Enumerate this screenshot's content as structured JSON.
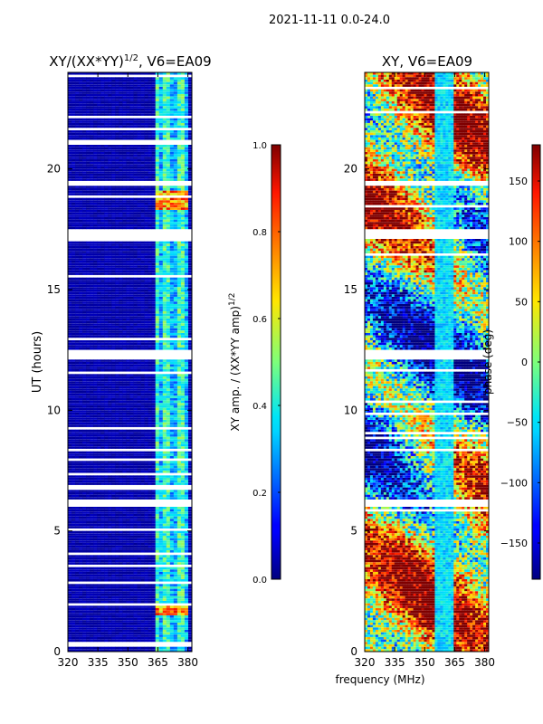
{
  "figure": {
    "suptitle": "2021-11-11 0.0-24.0",
    "shared_xlabel": "frequency (MHz)"
  },
  "chart_data": [
    {
      "type": "heatmap",
      "title": "XY/(XX*YY)^{1/2}, V6=EA09",
      "title_main": "XY/(XX*YY)",
      "title_sup": "1/2",
      "title_tail": ", V6=EA09",
      "xlabel": "",
      "ylabel": "UT (hours)",
      "xlim": [
        320,
        382
      ],
      "ylim": [
        0,
        24
      ],
      "xticks": [
        "320",
        "335",
        "350",
        "365",
        "380"
      ],
      "yticks": [
        "0",
        "5",
        "10",
        "15",
        "20"
      ],
      "colorbar": {
        "label": "XY amp. / (XX*YY amp)^{1/2}",
        "label_main": "XY amp. / (XX*YY amp)",
        "label_sup": "1/2",
        "range": [
          0.0,
          1.0
        ],
        "ticks": [
          "0.0",
          "0.2",
          "0.4",
          "0.6",
          "0.8",
          "1.0"
        ],
        "colormap": "jet"
      },
      "active_band_mhz": [
        363,
        380
      ],
      "flagged_time_ranges_hours": [
        [
          5.95,
          6.35
        ],
        [
          12.15,
          12.45
        ],
        [
          17.15,
          17.45
        ],
        [
          19.3,
          19.5
        ]
      ],
      "bright_time_ranges_hours": [
        [
          1.5,
          1.9
        ],
        [
          18.3,
          19.1
        ]
      ]
    },
    {
      "type": "heatmap",
      "title": "XY, V6=EA09",
      "xlabel": "frequency (MHz)",
      "ylabel": "",
      "xlim": [
        320,
        382
      ],
      "ylim": [
        0,
        24
      ],
      "xticks": [
        "320",
        "335",
        "350",
        "365",
        "380"
      ],
      "yticks": [
        "0",
        "5",
        "10",
        "15",
        "20"
      ],
      "colorbar": {
        "label": "phase (deg)",
        "range": [
          -180,
          180
        ],
        "ticks": [
          "−150",
          "−100",
          "−50",
          "0",
          "50",
          "100",
          "150"
        ],
        "tick_values": [
          -150,
          -100,
          -50,
          0,
          50,
          100,
          150
        ],
        "colormap": "jet"
      },
      "flagged_time_ranges_hours": [
        [
          5.95,
          6.35
        ],
        [
          12.15,
          12.45
        ],
        [
          17.15,
          17.45
        ],
        [
          19.3,
          19.5
        ]
      ]
    }
  ]
}
